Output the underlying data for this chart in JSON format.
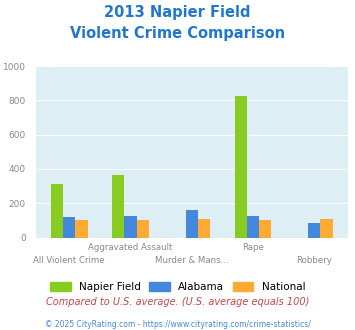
{
  "title_line1": "2013 Napier Field",
  "title_line2": "Violent Crime Comparison",
  "categories": [
    "All Violent Crime",
    "Aggravated Assault",
    "Murder & Mans...",
    "Rape",
    "Robbery"
  ],
  "series": {
    "Napier Field": [
      310,
      365,
      0,
      825,
      0
    ],
    "Alabama": [
      120,
      125,
      160,
      125,
      85
    ],
    "National": [
      105,
      105,
      110,
      105,
      108
    ]
  },
  "colors": {
    "Napier Field": "#88cc22",
    "Alabama": "#4488dd",
    "National": "#ffaa33"
  },
  "ylim": [
    0,
    1000
  ],
  "yticks": [
    0,
    200,
    400,
    600,
    800,
    1000
  ],
  "plot_bg": "#ddeef5",
  "title_color": "#2277cc",
  "tick_color": "#888888",
  "footer_text": "Compared to U.S. average. (U.S. average equals 100)",
  "credit_text": "© 2025 CityRating.com - https://www.cityrating.com/crime-statistics/",
  "footer_color": "#cc4444",
  "credit_color": "#4488dd",
  "bar_width": 0.2,
  "top_labels": [
    "",
    "Aggravated Assault",
    "",
    "Rape",
    ""
  ],
  "bottom_labels": [
    "All Violent Crime",
    "",
    "Murder & Mans...",
    "",
    "Robbery"
  ]
}
